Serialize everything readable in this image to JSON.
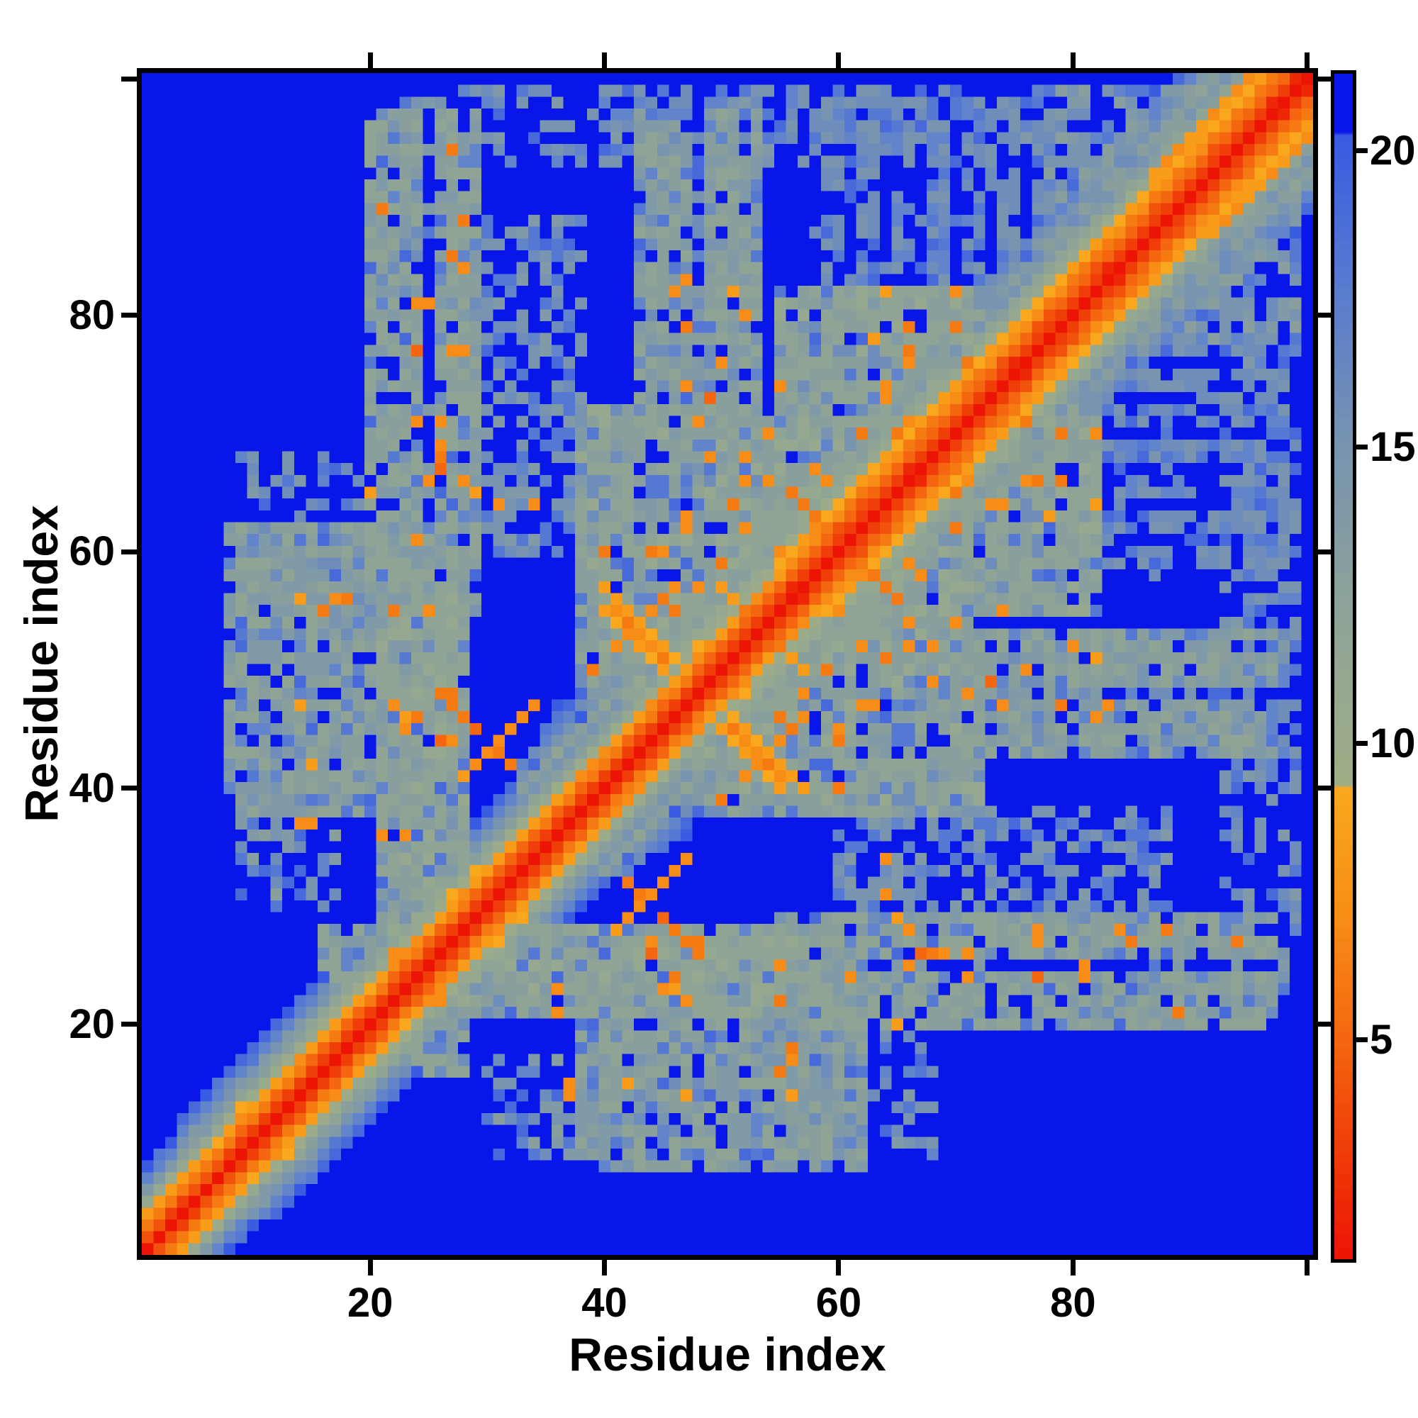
{
  "figure": {
    "xlabel": "Residue index",
    "ylabel": "Residue index",
    "background_color": "#ffffff",
    "frame_color": "#000000"
  },
  "chart_data": {
    "type": "heatmap",
    "title": "",
    "xlabel": "Residue index",
    "ylabel": "Residue index",
    "x_ticks": [
      20,
      40,
      60,
      80
    ],
    "y_ticks": [
      20,
      40,
      60,
      80
    ],
    "x_minor_unlabeled_ticks": [
      100
    ],
    "y_minor_unlabeled_ticks": [
      100
    ],
    "n_residues": 100,
    "xlim": [
      1,
      100
    ],
    "ylim": [
      1,
      100
    ],
    "grid": false,
    "symmetric": true,
    "value_range": [
      1.3,
      21.3
    ],
    "background_value_color": "#0816ea",
    "colorbar": {
      "orientation": "vertical",
      "position": "right",
      "ticks": [
        5,
        10,
        15,
        20
      ],
      "gradient_stops": [
        [
          1.3,
          "#ec1404"
        ],
        [
          3.0,
          "#ef3a08"
        ],
        [
          5.0,
          "#f4660f"
        ],
        [
          7.0,
          "#f78c16"
        ],
        [
          9.2,
          "#f9a81e"
        ],
        [
          9.3,
          "#a0ad86"
        ],
        [
          12.0,
          "#90a496"
        ],
        [
          15.0,
          "#7894b0"
        ],
        [
          18.0,
          "#5578d2"
        ],
        [
          20.2,
          "#3a5ce2"
        ],
        [
          20.3,
          "#0816ea"
        ],
        [
          21.3,
          "#0816ea"
        ]
      ]
    },
    "palette_levels": {
      "1": "#ec1404",
      "2": "#ee2806",
      "3": "#f03e09",
      "4": "#f2530c",
      "5": "#f4660f",
      "6": "#f67a12",
      "7": "#f78c16",
      "8": "#f89c1a",
      "9": "#f9a81e",
      "10": "#9cab8a",
      "11": "#96a88f",
      "12": "#90a496",
      "13": "#889f9e",
      "14": "#809aa7",
      "15": "#7894b0",
      "16": "#6f8dbb",
      "17": "#6284cb",
      "18": "#5578d2",
      "19": "#4769da",
      "20": "#3a5ce2",
      "21": "#0816ea"
    },
    "matrix_spec": {
      "n": 100,
      "cap_value": 22,
      "diag": {
        "base": 0.8,
        "slope_near": 2.35,
        "slope_mid": 2.12,
        "slope_far": 1.92,
        "mid_from": 48,
        "far_from": 56,
        "noise": 1.6
      },
      "rects": [
        {
          "i": [
            20,
            29
          ],
          "j": [
            55,
            97
          ],
          "v": 12.8,
          "jit": 2.6,
          "hole": 0.1,
          "steel": 0.2,
          "orange": 0.018,
          "seam": 25
        },
        {
          "i": [
            8,
            28
          ],
          "j": [
            38,
            62
          ],
          "v": 13.0,
          "jit": 2.6,
          "hole": 0.13,
          "steel": 0.22,
          "orange": 0.012
        },
        {
          "i": [
            9,
            19
          ],
          "j": [
            52,
            68
          ],
          "v": 15.3,
          "jit": 2.2,
          "hole": 0.55,
          "steel": 0.25,
          "orange": 0.0
        },
        {
          "i": [
            38,
            55
          ],
          "j": [
            48,
            72
          ],
          "v": 12.6,
          "jit": 2.6,
          "hole": 0.1,
          "steel": 0.16,
          "orange": 0.02
        },
        {
          "i": [
            43,
            53
          ],
          "j": [
            72,
            97
          ],
          "v": 13.1,
          "jit": 2.4,
          "hole": 0.15,
          "steel": 0.22,
          "orange": 0.012,
          "seam": 48
        },
        {
          "i": [
            55,
            72
          ],
          "j": [
            60,
            82
          ],
          "v": 12.4,
          "jit": 2.4,
          "hole": 0.09,
          "steel": 0.15,
          "orange": 0.03
        },
        {
          "i": [
            58,
            77
          ],
          "j": [
            80,
            98
          ],
          "v": 15.6,
          "jit": 2.0,
          "hole": 0.3,
          "steel": 0.3,
          "orange": 0.0,
          "stripe": 3
        },
        {
          "i": [
            21,
            28
          ],
          "j": [
            28,
            56
          ],
          "v": 12.5,
          "jit": 2.6,
          "hole": 0.11,
          "steel": 0.16,
          "orange": 0.015
        },
        {
          "i": [
            16,
            28
          ],
          "j": [
            20,
            28
          ],
          "v": 13.0,
          "jit": 2.4,
          "hole": 0.12,
          "steel": 0.18,
          "orange": 0.01
        },
        {
          "i": [
            71,
            92
          ],
          "j": [
            44,
            52
          ],
          "v": 13.8,
          "jit": 2.2,
          "hole": 0.42,
          "steel": 0.3,
          "orange": 0.008
        },
        {
          "i": [
            29,
            38
          ],
          "j": [
            60,
            88
          ],
          "v": 14.6,
          "jit": 2.2,
          "hole": 0.48,
          "steel": 0.3,
          "orange": 0.006
        },
        {
          "i": [
            50,
            63
          ],
          "j": [
            52,
            64
          ],
          "v": 12.2,
          "jit": 2.2,
          "hole": 0.08,
          "steel": 0.12,
          "orange": 0.04
        },
        {
          "i": [
            93,
            98
          ],
          "j": [
            21,
            27
          ],
          "v": 14.3,
          "jit": 2.0,
          "hole": 0.45,
          "steel": 0.3,
          "orange": 0.01
        },
        {
          "i": [
            95,
            99
          ],
          "j": [
            56,
            68
          ],
          "v": 15.5,
          "jit": 2.0,
          "hole": 0.62,
          "steel": 0.35,
          "orange": 0.0
        },
        {
          "i": [
            9,
            17
          ],
          "j": [
            30,
            45
          ],
          "v": 14.2,
          "jit": 2.2,
          "hole": 0.5,
          "steel": 0.3,
          "orange": 0.0
        },
        {
          "i": [
            28,
            78
          ],
          "j": [
            93,
            99
          ],
          "v": 15.0,
          "jit": 2.0,
          "hole": 0.55,
          "steel": 0.3,
          "orange": 0.0
        },
        {
          "i": [
            78,
            99
          ],
          "j": [
            78,
            99
          ],
          "v": 14.0,
          "jit": 2.4,
          "hole": 0.3,
          "steel": 0.28,
          "orange": 0.004
        }
      ],
      "lines": [
        {
          "kind": "para",
          "off": 5,
          "i": [
            4,
            34
          ],
          "v": 13.0,
          "w": 3,
          "hole": 0.22
        },
        {
          "kind": "para",
          "off": 7,
          "i": [
            33,
            56
          ],
          "v": 12.8,
          "w": 4,
          "hole": 0.18
        },
        {
          "kind": "para",
          "off": 8,
          "i": [
            56,
            99
          ],
          "v": 13.0,
          "w": 6,
          "hole": 0.18
        },
        {
          "kind": "anti",
          "c": 96,
          "i": [
            40,
            48
          ],
          "v": 6.3,
          "w": 1,
          "hole": 0.05
        },
        {
          "kind": "anti",
          "c": 74,
          "i": [
            26,
            32
          ],
          "v": 6.2,
          "w": 0,
          "hole": 0.05
        },
        {
          "kind": "para",
          "off": 11,
          "i": [
            38,
            46
          ],
          "v": 6.9,
          "w": 0,
          "hole": 0.1
        },
        {
          "kind": "para",
          "off": 13,
          "i": [
            28,
            34
          ],
          "v": 7.1,
          "w": 0,
          "hole": 0.1
        },
        {
          "kind": "para",
          "off": 5,
          "i": [
            87,
            96
          ],
          "v": 7.6,
          "w": 0,
          "hole": 0.15
        },
        {
          "kind": "anti",
          "c": 121,
          "i": [
            56,
            60
          ],
          "v": 6.8,
          "w": 0,
          "hole": 0.1
        }
      ],
      "dots": [
        [
          44,
          26,
          4.6
        ],
        [
          44,
          27,
          6.5
        ],
        [
          67,
          26,
          5.2
        ],
        [
          69,
          26,
          6.8
        ],
        [
          77,
          27,
          6.9
        ],
        [
          81,
          25,
          6.9
        ],
        [
          36,
          23,
          7.0
        ],
        [
          47,
          22,
          7.2
        ],
        [
          26,
          22,
          6.9
        ],
        [
          14,
          37,
          6.8
        ],
        [
          15,
          37,
          7.0
        ],
        [
          33,
          46,
          7.0
        ],
        [
          29,
          45,
          4.9
        ],
        [
          25,
          66,
          6.6
        ],
        [
          28,
          66,
          6.8
        ],
        [
          24,
          71,
          6.5
        ],
        [
          26,
          71,
          7.0
        ],
        [
          24,
          77,
          4.8
        ],
        [
          28,
          77,
          6.7
        ],
        [
          24,
          81,
          6.6
        ],
        [
          31,
          64,
          6.8
        ],
        [
          34,
          64,
          7.0
        ],
        [
          46,
          55,
          6.4
        ],
        [
          48,
          57,
          6.7
        ],
        [
          45,
          60,
          6.9
        ],
        [
          47,
          63,
          6.6
        ],
        [
          49,
          68,
          6.8
        ],
        [
          47,
          74,
          6.5
        ],
        [
          50,
          76,
          7.0
        ],
        [
          52,
          62,
          6.9
        ],
        [
          59,
          66,
          6.6
        ],
        [
          62,
          70,
          6.4
        ],
        [
          64,
          73,
          6.8
        ],
        [
          66,
          76,
          6.6
        ],
        [
          58,
          62,
          6.9
        ],
        [
          68,
          52,
          6.7
        ],
        [
          70,
          54,
          6.9
        ],
        [
          73,
          49,
          4.8
        ]
      ]
    }
  }
}
